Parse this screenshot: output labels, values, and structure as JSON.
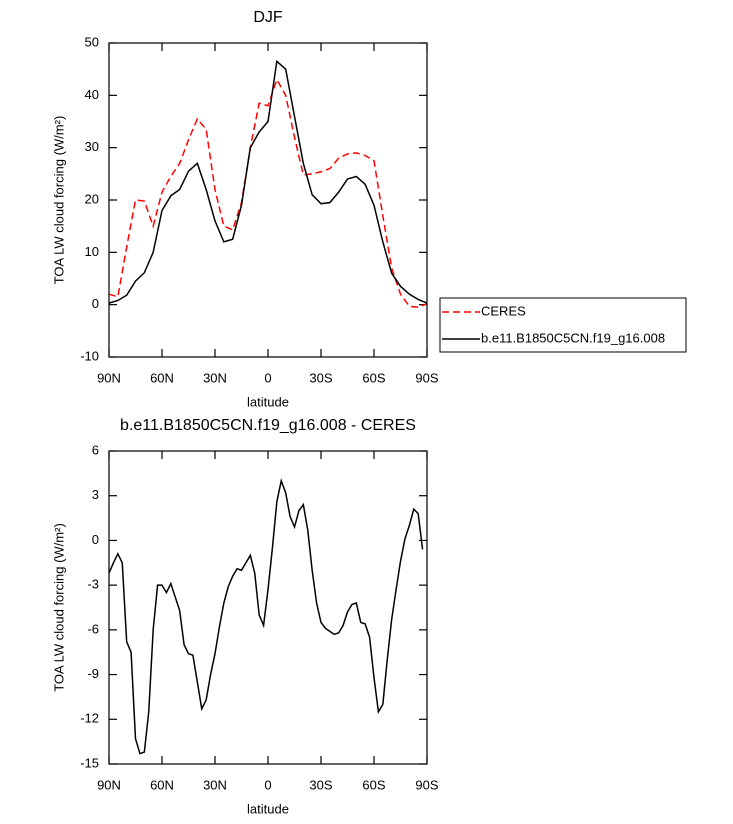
{
  "chart_data": [
    {
      "type": "line",
      "title": "DJF",
      "xlabel": "latitude",
      "ylabel": "TOA LW cloud forcing (W/m²)",
      "x": [
        90,
        85,
        80,
        75,
        70,
        65,
        60,
        55,
        50,
        45,
        40,
        35,
        30,
        25,
        20,
        15,
        10,
        5,
        0,
        -5,
        -10,
        -15,
        -20,
        -25,
        -30,
        -35,
        -40,
        -45,
        -50,
        -55,
        -60,
        -65,
        -70,
        -75,
        -80,
        -85,
        -90
      ],
      "series": [
        {
          "name": "CERES",
          "color": "#ff0000",
          "style": "dashed",
          "values": [
            2,
            1.5,
            11,
            20,
            19.8,
            15,
            21.5,
            24.5,
            27,
            31.5,
            35.5,
            33.5,
            22,
            15,
            14.3,
            19.5,
            30,
            38.5,
            38,
            43,
            40,
            32,
            24.8,
            25,
            25.4,
            26,
            28,
            28.8,
            29,
            28.5,
            27.5,
            17,
            7,
            2,
            -0.3,
            -0.5,
            0.2
          ]
        },
        {
          "name": "b.e11.B1850C5CN.f19_g16.008",
          "color": "#000000",
          "style": "solid",
          "values": [
            0.3,
            0.8,
            1.8,
            4.5,
            6.1,
            10,
            18,
            20.8,
            22,
            25.5,
            27,
            22,
            16,
            12,
            12.5,
            19,
            30,
            33,
            35,
            46.5,
            45,
            36,
            27,
            21,
            19.3,
            19.5,
            21.5,
            24,
            24.5,
            23,
            19,
            12,
            6,
            3.5,
            2,
            1,
            0.3
          ]
        }
      ],
      "xlim": [
        90,
        -90
      ],
      "xticks": [
        {
          "value": 90,
          "label": "90N"
        },
        {
          "value": 60,
          "label": "60N"
        },
        {
          "value": 30,
          "label": "30N"
        },
        0,
        {
          "value": -30,
          "label": "30S"
        },
        {
          "value": -60,
          "label": "60S"
        },
        {
          "value": -90,
          "label": "90S"
        }
      ],
      "ylim": [
        -10,
        50
      ],
      "yticks": [
        -10,
        0,
        10,
        20,
        30,
        40,
        50
      ],
      "legend": "right"
    },
    {
      "type": "line",
      "title": "b.e11.B1850C5CN.f19_g16.008 - CERES",
      "xlabel": "latitude",
      "ylabel": "TOA LW cloud forcing (W/m²)",
      "x": [
        90,
        87.5,
        85,
        82.5,
        80,
        77.5,
        75,
        72.5,
        70,
        67.5,
        65,
        62.5,
        60,
        57.5,
        55,
        52.5,
        50,
        47.5,
        45,
        42.5,
        40,
        37.5,
        35,
        32.5,
        30,
        27.5,
        25,
        22.5,
        20,
        17.5,
        15,
        12.5,
        10,
        7.5,
        5,
        2.5,
        0,
        -2.5,
        -5,
        -7.5,
        -10,
        -12.5,
        -15,
        -17.5,
        -20,
        -22.5,
        -25,
        -27.5,
        -30,
        -32.5,
        -35,
        -37.5,
        -40,
        -42.5,
        -45,
        -47.5,
        -50,
        -52.5,
        -55,
        -57.5,
        -60,
        -62.5,
        -65,
        -67.5,
        -70,
        -72.5,
        -75,
        -77.5,
        -80,
        -82.5,
        -85,
        -87.5
      ],
      "series": [
        {
          "name": "b.e11.B1850C5CN.f19_g16.008 - CERES",
          "color": "#000000",
          "style": "solid",
          "values": [
            -2.2,
            -1.5,
            -0.9,
            -1.5,
            -6.8,
            -7.5,
            -13.3,
            -14.3,
            -14.2,
            -11.5,
            -6,
            -3,
            -3,
            -3.5,
            -2.9,
            -3.8,
            -4.7,
            -7,
            -7.6,
            -7.7,
            -9.5,
            -11.3,
            -10.7,
            -9,
            -7.6,
            -5.8,
            -4.2,
            -3.1,
            -2.4,
            -1.9,
            -2,
            -1.5,
            -1,
            -2.2,
            -5,
            -5.7,
            -3.3,
            -0.5,
            2.6,
            4,
            3.2,
            1.6,
            0.9,
            2,
            2.4,
            0.7,
            -2,
            -4.2,
            -5.5,
            -5.9,
            -6.1,
            -6.3,
            -6.2,
            -5.7,
            -4.8,
            -4.3,
            -4.2,
            -5.5,
            -5.6,
            -6.5,
            -9.2,
            -11.5,
            -11,
            -8,
            -5.3,
            -3.3,
            -1.4,
            0.1,
            1,
            2.1,
            1.8,
            -0.6
          ]
        }
      ],
      "xlim": [
        90,
        -90
      ],
      "xticks": [
        {
          "value": 90,
          "label": "90N"
        },
        {
          "value": 60,
          "label": "60N"
        },
        {
          "value": 30,
          "label": "30N"
        },
        0,
        {
          "value": -30,
          "label": "30S"
        },
        {
          "value": -60,
          "label": "60S"
        },
        {
          "value": -90,
          "label": "90S"
        }
      ],
      "ylim": [
        -15,
        6
      ],
      "yticks": [
        -15,
        -12,
        -9,
        -6,
        -3,
        0,
        3,
        6
      ]
    }
  ]
}
